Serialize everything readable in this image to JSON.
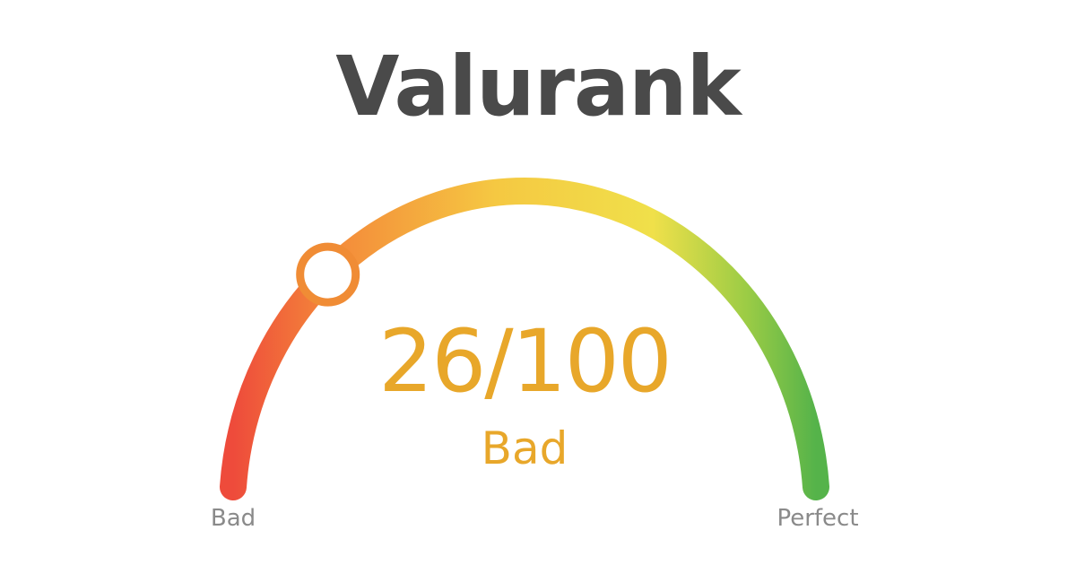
{
  "brand": {
    "title": "Valurank"
  },
  "gauge": {
    "score": 26,
    "max": 100,
    "score_text": "26/100",
    "rating": "Bad",
    "min_label": "Bad",
    "max_label": "Perfect",
    "colors": {
      "track_start": "#ee4b3b",
      "track_orange": "#f4893a",
      "track_yellow": "#f5c842",
      "track_yellow_light": "#f0e04a",
      "track_lime": "#9ccc45",
      "track_end": "#55b34a",
      "indicator_ring": "#f08c35",
      "indicator_fill": "#ffffff",
      "score_color": "#e8a72a",
      "label_color": "#8a8a8a",
      "title_color": "#4a4a4a"
    }
  }
}
